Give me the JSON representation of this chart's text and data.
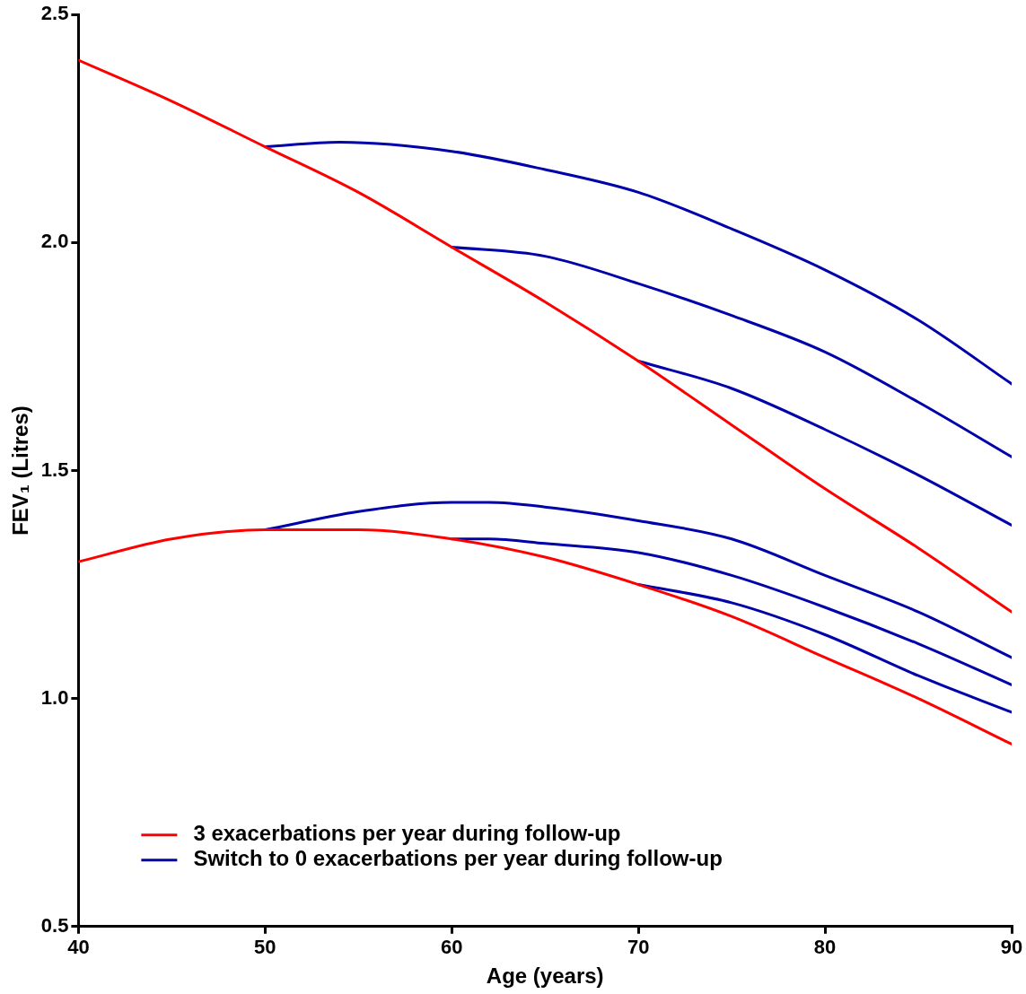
{
  "chart_data": {
    "type": "line",
    "xlabel": "Age (years)",
    "ylabel": "FEV₁ (Litres)",
    "xlim": [
      40,
      90
    ],
    "xticks": [
      40,
      50,
      60,
      70,
      80,
      90
    ],
    "ylim": [
      0.5,
      2.5
    ],
    "yticks": [
      {
        "value": 0.5,
        "label": "0.5"
      },
      {
        "value": 1,
        "label": "1.0"
      },
      {
        "value": 1.5,
        "label": "1.5"
      },
      {
        "value": 2,
        "label": "2.0"
      },
      {
        "value": 2.5,
        "label": "2.5"
      }
    ],
    "grid": false,
    "legend": "bottom left",
    "marker": "none",
    "line_style": "solid",
    "series": [
      {
        "name": "3 exacerbations per year during follow-up",
        "color": "#ff0000",
        "x": [
          40,
          45,
          50,
          55,
          60,
          65,
          70,
          75,
          80,
          85,
          90
        ],
        "values": [
          2.4,
          2.31,
          2.21,
          2.11,
          1.99,
          1.87,
          1.74,
          1.6,
          1.46,
          1.33,
          1.19
        ]
      },
      {
        "name": "Switch to 0 exacerbations per year during follow-up",
        "color": "#0000aa",
        "x": [
          50,
          54,
          60,
          65,
          70,
          75,
          80,
          85,
          90
        ],
        "values": [
          2.21,
          2.22,
          2.2,
          2.16,
          2.11,
          2.03,
          1.94,
          1.83,
          1.69
        ]
      },
      {
        "color": "#0000aa",
        "x": [
          60,
          65,
          70,
          75,
          80,
          85,
          90
        ],
        "values": [
          1.99,
          1.97,
          1.91,
          1.84,
          1.76,
          1.65,
          1.53
        ]
      },
      {
        "color": "#0000aa",
        "x": [
          70,
          75,
          80,
          85,
          90
        ],
        "values": [
          1.74,
          1.68,
          1.59,
          1.49,
          1.38
        ]
      },
      {
        "color": "#ff0000",
        "x": [
          40,
          45,
          50,
          52,
          55,
          60,
          65,
          70,
          75,
          80,
          85,
          90
        ],
        "values": [
          1.3,
          1.35,
          1.37,
          1.37,
          1.37,
          1.35,
          1.31,
          1.25,
          1.18,
          1.09,
          1.0,
          0.9
        ]
      },
      {
        "color": "#0000aa",
        "x": [
          50,
          55,
          60,
          62,
          65,
          70,
          75,
          80,
          85,
          90
        ],
        "values": [
          1.37,
          1.41,
          1.43,
          1.43,
          1.42,
          1.39,
          1.35,
          1.27,
          1.19,
          1.09
        ]
      },
      {
        "color": "#0000aa",
        "x": [
          60,
          62,
          65,
          70,
          75,
          80,
          85,
          90
        ],
        "values": [
          1.35,
          1.35,
          1.34,
          1.32,
          1.27,
          1.2,
          1.12,
          1.03
        ]
      },
      {
        "color": "#0000aa",
        "x": [
          70,
          75,
          80,
          85,
          90
        ],
        "values": [
          1.25,
          1.21,
          1.14,
          1.05,
          0.97
        ]
      }
    ]
  }
}
